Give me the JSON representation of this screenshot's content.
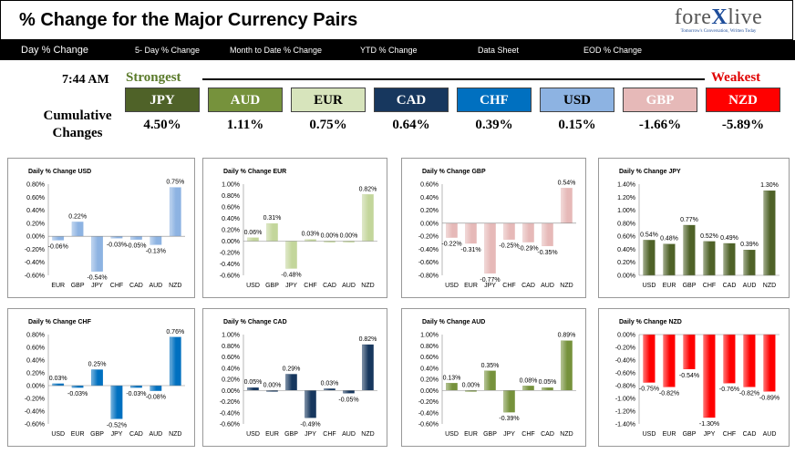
{
  "header": {
    "title": "% Change for the Major Currency Pairs"
  },
  "logo": {
    "text_pre": "fore",
    "text_x": "X",
    "text_post": "live",
    "tagline": "Tomorrow's Conversation, Written Today"
  },
  "nav": {
    "items": [
      "Day % Change",
      "5- Day % Change",
      "Month to Date % Change",
      "YTD % Change",
      "Data Sheet",
      "EOD % Change"
    ]
  },
  "ranking": {
    "time": "7:44 AM",
    "strongest_label": "Strongest",
    "weakest_label": "Weakest",
    "cumulative_label_1": "Cumulative",
    "cumulative_label_2": "Changes",
    "currencies": [
      {
        "name": "JPY",
        "value": "4.50%",
        "color": "#4f6228",
        "text_color": "#ffffff"
      },
      {
        "name": "AUD",
        "value": "1.11%",
        "color": "#76923c",
        "text_color": "#ffffff"
      },
      {
        "name": "EUR",
        "value": "0.75%",
        "color": "#d7e4bc",
        "text_color": "#000000"
      },
      {
        "name": "CAD",
        "value": "0.64%",
        "color": "#17375e",
        "text_color": "#ffffff"
      },
      {
        "name": "CHF",
        "value": "0.39%",
        "color": "#0070c0",
        "text_color": "#ffffff"
      },
      {
        "name": "USD",
        "value": "0.15%",
        "color": "#8db3e2",
        "text_color": "#000000"
      },
      {
        "name": "GBP",
        "value": "-1.66%",
        "color": "#e6b9b8",
        "text_color": "#ffffff"
      },
      {
        "name": "NZD",
        "value": "-5.89%",
        "color": "#ff0000",
        "text_color": "#ffffff"
      }
    ]
  },
  "chart_data": [
    {
      "type": "bar",
      "title": "Daily % Change USD",
      "categories": [
        "EUR",
        "GBP",
        "JPY",
        "CHF",
        "CAD",
        "AUD",
        "NZD"
      ],
      "values": [
        -0.06,
        0.22,
        -0.54,
        -0.03,
        -0.05,
        -0.13,
        0.75
      ],
      "labels": [
        "-0.06%",
        "0.22%",
        "-0.54%",
        "-0.03%",
        "-0.05%",
        "-0.13%",
        "0.75%"
      ],
      "ylim": [
        -0.6,
        0.8
      ],
      "yticks": [
        "-0.60%",
        "-0.40%",
        "-0.20%",
        "0.00%",
        "0.20%",
        "0.40%",
        "0.60%",
        "0.80%"
      ],
      "color": "#8db3e2"
    },
    {
      "type": "bar",
      "title": "Daily % Change EUR",
      "categories": [
        "USD",
        "GBP",
        "JPY",
        "CHF",
        "CAD",
        "AUD",
        "NZD"
      ],
      "values": [
        0.06,
        0.31,
        -0.48,
        0.03,
        0.0,
        0.0,
        0.82
      ],
      "labels": [
        "0.06%",
        "0.31%",
        "-0.48%",
        "0.03%",
        "0.00%",
        "0.00%",
        "0.82%"
      ],
      "ylim": [
        -0.6,
        1.0
      ],
      "yticks": [
        "-0.60%",
        "-0.40%",
        "-0.20%",
        "0.00%",
        "0.20%",
        "0.40%",
        "0.60%",
        "0.80%",
        "1.00%"
      ],
      "color": "#c3d69b"
    },
    {
      "type": "bar",
      "title": "Daily % Change GBP",
      "categories": [
        "USD",
        "EUR",
        "JPY",
        "CHF",
        "CAD",
        "AUD",
        "NZD"
      ],
      "values": [
        -0.22,
        -0.31,
        -0.77,
        -0.25,
        -0.29,
        -0.35,
        0.54
      ],
      "labels": [
        "-0.22%",
        "-0.31%",
        "-0.77%",
        "-0.25%",
        "-0.29%",
        "-0.35%",
        "0.54%"
      ],
      "ylim": [
        -0.8,
        0.6
      ],
      "yticks": [
        "-0.80%",
        "-0.60%",
        "-0.40%",
        "-0.20%",
        "0.00%",
        "0.20%",
        "0.40%",
        "0.60%"
      ],
      "color": "#e6b9b8"
    },
    {
      "type": "bar",
      "title": "Daily % Change JPY",
      "categories": [
        "USD",
        "EUR",
        "GBP",
        "CHF",
        "CAD",
        "AUD",
        "NZD"
      ],
      "values": [
        0.54,
        0.48,
        0.77,
        0.52,
        0.49,
        0.39,
        1.3
      ],
      "labels": [
        "0.54%",
        "0.48%",
        "0.77%",
        "0.52%",
        "0.49%",
        "0.39%",
        "1.30%"
      ],
      "ylim": [
        0.0,
        1.4
      ],
      "yticks": [
        "0.00%",
        "0.20%",
        "0.40%",
        "0.60%",
        "0.80%",
        "1.00%",
        "1.20%",
        "1.40%"
      ],
      "color": "#4f6228"
    },
    {
      "type": "bar",
      "title": "Daily % Change CHF",
      "categories": [
        "USD",
        "EUR",
        "GBP",
        "JPY",
        "CAD",
        "AUD",
        "NZD"
      ],
      "values": [
        0.03,
        -0.03,
        0.25,
        -0.52,
        -0.03,
        -0.08,
        0.76
      ],
      "labels": [
        "0.03%",
        "-0.03%",
        "0.25%",
        "-0.52%",
        "-0.03%",
        "-0.08%",
        "0.76%"
      ],
      "ylim": [
        -0.6,
        0.8
      ],
      "yticks": [
        "-0.60%",
        "-0.40%",
        "-0.20%",
        "0.00%",
        "0.20%",
        "0.40%",
        "0.60%",
        "0.80%"
      ],
      "color": "#0070c0"
    },
    {
      "type": "bar",
      "title": "Daily % Change CAD",
      "categories": [
        "USD",
        "EUR",
        "GBP",
        "JPY",
        "CHF",
        "AUD",
        "NZD"
      ],
      "values": [
        0.05,
        0.0,
        0.29,
        -0.49,
        0.03,
        -0.05,
        0.82
      ],
      "labels": [
        "0.05%",
        "0.00%",
        "0.29%",
        "-0.49%",
        "0.03%",
        "-0.05%",
        "0.82%"
      ],
      "ylim": [
        -0.6,
        1.0
      ],
      "yticks": [
        "-0.60%",
        "-0.40%",
        "-0.20%",
        "0.00%",
        "0.20%",
        "0.40%",
        "0.60%",
        "0.80%",
        "1.00%"
      ],
      "color": "#17375e"
    },
    {
      "type": "bar",
      "title": "Daily % Change AUD",
      "categories": [
        "USD",
        "EUR",
        "GBP",
        "JPY",
        "CHF",
        "CAD",
        "NZD"
      ],
      "values": [
        0.13,
        0.0,
        0.35,
        -0.39,
        0.08,
        0.05,
        0.89
      ],
      "labels": [
        "0.13%",
        "0.00%",
        "0.35%",
        "-0.39%",
        "0.08%",
        "0.05%",
        "0.89%"
      ],
      "ylim": [
        -0.6,
        1.0
      ],
      "yticks": [
        "-0.60%",
        "-0.40%",
        "-0.20%",
        "0.00%",
        "0.20%",
        "0.40%",
        "0.60%",
        "0.80%",
        "1.00%"
      ],
      "color": "#76923c"
    },
    {
      "type": "bar",
      "title": "Daily % Change NZD",
      "categories": [
        "USD",
        "EUR",
        "GBP",
        "JPY",
        "CHF",
        "CAD",
        "AUD"
      ],
      "values": [
        -0.75,
        -0.82,
        -0.54,
        -1.3,
        -0.76,
        -0.82,
        -0.89
      ],
      "labels": [
        "-0.75%",
        "-0.82%",
        "-0.54%",
        "-1.30%",
        "-0.76%",
        "-0.82%",
        "-0.89%"
      ],
      "ylim": [
        -1.4,
        0.0
      ],
      "yticks": [
        "-1.40%",
        "-1.20%",
        "-1.00%",
        "-0.80%",
        "-0.60%",
        "-0.40%",
        "-0.20%",
        "0.00%"
      ],
      "color": "#ff0000"
    }
  ]
}
